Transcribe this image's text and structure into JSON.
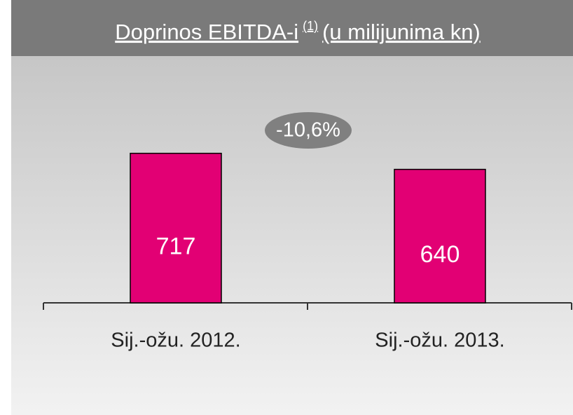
{
  "chart_data": {
    "type": "bar",
    "title": "Doprinos EBITDA-i",
    "title_superscript": "(1)",
    "title_suffix": "(u milijunima kn)",
    "categories": [
      "Sij.-ožu. 2012.",
      "Sij.-ožu. 2013."
    ],
    "values": [
      717,
      640
    ],
    "color": "#e20074",
    "ylim": [
      0,
      800
    ],
    "annotation": "-10,6%"
  }
}
